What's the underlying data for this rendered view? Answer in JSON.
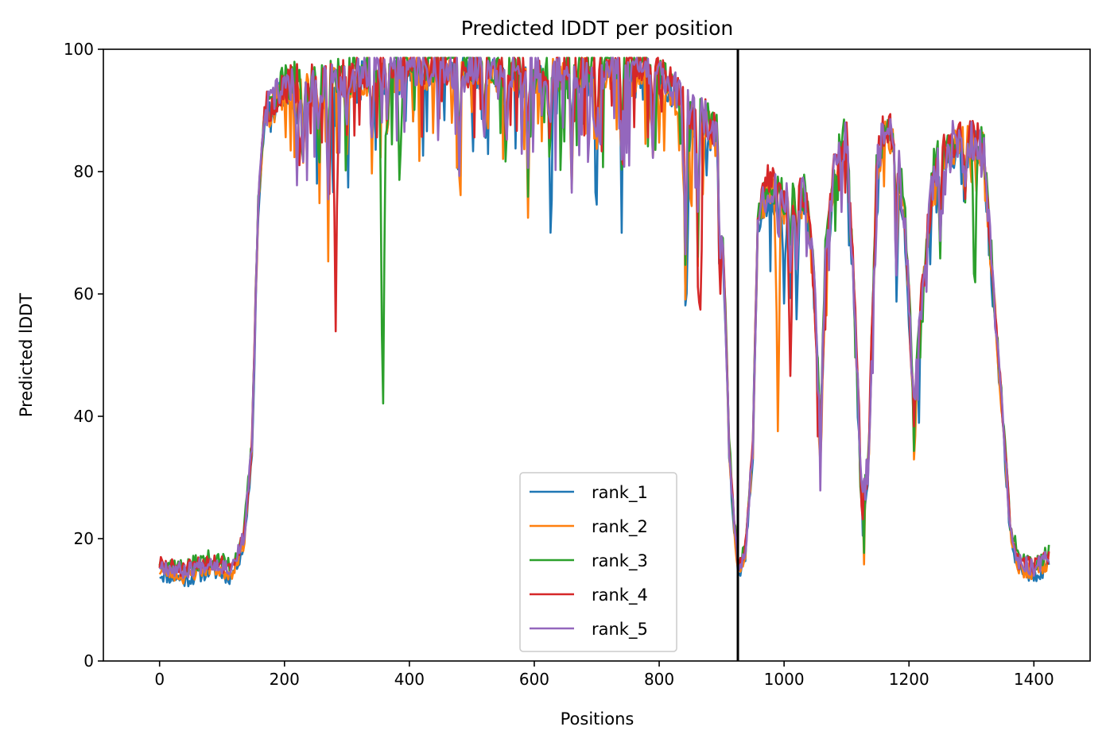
{
  "chart_data": {
    "type": "line",
    "title": "Predicted lDDT per position",
    "xlabel": "Positions",
    "ylabel": "Predicted lDDT",
    "xlim": [
      -90,
      1490
    ],
    "ylim": [
      0,
      100
    ],
    "xticks": [
      0,
      200,
      400,
      600,
      800,
      1000,
      1200,
      1400
    ],
    "yticks": [
      0,
      20,
      40,
      60,
      80,
      100
    ],
    "grid": false,
    "legend_position": "lower-center",
    "vline": {
      "x": 926,
      "color": "#000000"
    },
    "series": [
      {
        "name": "rank_1",
        "color": "#1f77b4",
        "offset": -1.2,
        "seed": 11,
        "dips": [
          {
            "x": 845,
            "depth": 20
          },
          {
            "x": 1020,
            "depth": 8
          },
          {
            "x": 1150,
            "depth": 6
          },
          {
            "x": 1000,
            "depth": 15
          },
          {
            "x": 1180,
            "depth": 10
          }
        ]
      },
      {
        "name": "rank_2",
        "color": "#ff7f0e",
        "offset": -0.6,
        "seed": 23,
        "dips": [
          {
            "x": 990,
            "depth": 35
          },
          {
            "x": 1060,
            "depth": 8
          },
          {
            "x": 1210,
            "depth": 6
          }
        ]
      },
      {
        "name": "rank_3",
        "color": "#2ca02c",
        "offset": 0.8,
        "seed": 37,
        "dips": [
          {
            "x": 358,
            "depth": 55
          },
          {
            "x": 1305,
            "depth": 28
          },
          {
            "x": 385,
            "depth": 15
          }
        ]
      },
      {
        "name": "rank_4",
        "color": "#d62728",
        "offset": 0.4,
        "seed": 51,
        "dips": [
          {
            "x": 282,
            "depth": 40
          },
          {
            "x": 225,
            "depth": 14
          },
          {
            "x": 865,
            "depth": 28
          },
          {
            "x": 1010,
            "depth": 22
          }
        ]
      },
      {
        "name": "rank_5",
        "color": "#9467bd",
        "offset": 0.2,
        "seed": 67,
        "dips": [
          {
            "x": 220,
            "depth": 12
          },
          {
            "x": 1265,
            "depth": 4
          }
        ]
      }
    ],
    "x_max": 1425,
    "profile": [
      [
        0,
        15.5
      ],
      [
        40,
        14.5
      ],
      [
        80,
        16.0
      ],
      [
        115,
        15.0
      ],
      [
        135,
        20
      ],
      [
        148,
        35
      ],
      [
        158,
        75
      ],
      [
        168,
        89
      ],
      [
        180,
        91
      ],
      [
        200,
        94
      ],
      [
        260,
        94
      ],
      [
        320,
        96
      ],
      [
        400,
        97
      ],
      [
        500,
        97
      ],
      [
        600,
        96
      ],
      [
        700,
        96
      ],
      [
        780,
        96
      ],
      [
        820,
        94
      ],
      [
        845,
        90
      ],
      [
        880,
        88
      ],
      [
        895,
        85
      ],
      [
        905,
        60
      ],
      [
        912,
        35
      ],
      [
        920,
        22
      ],
      [
        927,
        15
      ],
      [
        938,
        18
      ],
      [
        950,
        35
      ],
      [
        958,
        72
      ],
      [
        975,
        78
      ],
      [
        1000,
        75
      ],
      [
        1035,
        76
      ],
      [
        1048,
        62
      ],
      [
        1058,
        36
      ],
      [
        1066,
        65
      ],
      [
        1080,
        80
      ],
      [
        1100,
        86
      ],
      [
        1112,
        60
      ],
      [
        1125,
        25
      ],
      [
        1135,
        32
      ],
      [
        1148,
        80
      ],
      [
        1162,
        88
      ],
      [
        1180,
        84
      ],
      [
        1195,
        70
      ],
      [
        1208,
        40
      ],
      [
        1222,
        62
      ],
      [
        1240,
        80
      ],
      [
        1270,
        85
      ],
      [
        1300,
        85
      ],
      [
        1320,
        84
      ],
      [
        1335,
        60
      ],
      [
        1350,
        40
      ],
      [
        1362,
        22
      ],
      [
        1375,
        16
      ],
      [
        1400,
        15
      ],
      [
        1425,
        17
      ]
    ],
    "dips_common": [
      {
        "x": 230,
        "depth": 12
      },
      {
        "x": 255,
        "depth": 8
      },
      {
        "x": 270,
        "depth": 15
      },
      {
        "x": 300,
        "depth": 8
      },
      {
        "x": 340,
        "depth": 12
      },
      {
        "x": 365,
        "depth": 10
      },
      {
        "x": 480,
        "depth": 14
      },
      {
        "x": 520,
        "depth": 12
      },
      {
        "x": 555,
        "depth": 12
      },
      {
        "x": 590,
        "depth": 13
      },
      {
        "x": 625,
        "depth": 14
      },
      {
        "x": 660,
        "depth": 15
      },
      {
        "x": 700,
        "depth": 12
      },
      {
        "x": 740,
        "depth": 14
      },
      {
        "x": 790,
        "depth": 10
      },
      {
        "x": 842,
        "depth": 28
      },
      {
        "x": 862,
        "depth": 22
      },
      {
        "x": 897,
        "depth": 18
      },
      {
        "x": 1010,
        "depth": 10
      },
      {
        "x": 1020,
        "depth": 10
      },
      {
        "x": 1180,
        "depth": 14
      },
      {
        "x": 1250,
        "depth": 10
      },
      {
        "x": 1290,
        "depth": 8
      }
    ]
  }
}
